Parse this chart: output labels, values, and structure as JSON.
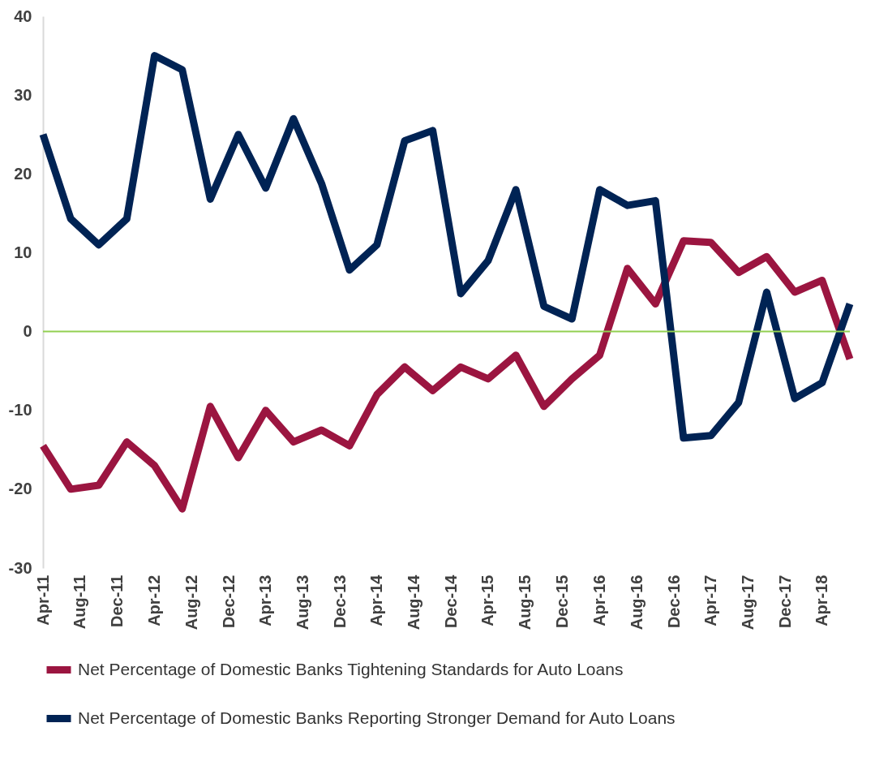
{
  "chart_data": {
    "type": "line",
    "x": [
      "2011-04",
      "2011-07",
      "2011-10",
      "2012-01",
      "2012-04",
      "2012-07",
      "2012-10",
      "2013-01",
      "2013-04",
      "2013-07",
      "2013-10",
      "2014-01",
      "2014-04",
      "2014-07",
      "2014-10",
      "2015-01",
      "2015-04",
      "2015-07",
      "2015-10",
      "2016-01",
      "2016-04",
      "2016-07",
      "2016-10",
      "2017-01",
      "2017-04",
      "2017-07",
      "2017-10",
      "2018-01",
      "2018-04",
      "2018-07"
    ],
    "series": [
      {
        "name": "Net Percentage of Domestic Banks Tightening Standards for Auto Loans",
        "color": "#9b1540",
        "values": [
          -14.5,
          -20,
          -19.5,
          -14,
          -17,
          -22.5,
          -9.5,
          -16,
          -10,
          -14,
          -12.5,
          -14.5,
          -8,
          -4.5,
          -7.5,
          -4.5,
          -6,
          -3,
          -9.5,
          -6,
          -3,
          8,
          3.5,
          11.5,
          11.3,
          7.5,
          9.5,
          5,
          6.5,
          -3.5
        ]
      },
      {
        "name": "Net Percentage of Domestic Banks Reporting Stronger Demand for Auto Loans",
        "color": "#002354",
        "values": [
          25,
          14.3,
          11,
          14.3,
          35,
          33.2,
          16.8,
          25,
          18.2,
          27,
          18.8,
          7.8,
          11,
          24.2,
          25.5,
          4.8,
          9,
          18,
          3.2,
          1.6,
          18,
          16,
          16.6,
          -13.5,
          -13.2,
          -9,
          5,
          -8.5,
          -6.5,
          3.5
        ]
      }
    ],
    "xlim": [
      "2011-04",
      "2018-07"
    ],
    "xticks": [
      {
        "value": "2011-04",
        "label": "Apr-11"
      },
      {
        "value": "2011-08",
        "label": "Aug-11"
      },
      {
        "value": "2011-12",
        "label": "Dec-11"
      },
      {
        "value": "2012-04",
        "label": "Apr-12"
      },
      {
        "value": "2012-08",
        "label": "Aug-12"
      },
      {
        "value": "2012-12",
        "label": "Dec-12"
      },
      {
        "value": "2013-04",
        "label": "Apr-13"
      },
      {
        "value": "2013-08",
        "label": "Aug-13"
      },
      {
        "value": "2013-12",
        "label": "Dec-13"
      },
      {
        "value": "2014-04",
        "label": "Apr-14"
      },
      {
        "value": "2014-08",
        "label": "Aug-14"
      },
      {
        "value": "2014-12",
        "label": "Dec-14"
      },
      {
        "value": "2015-04",
        "label": "Apr-15"
      },
      {
        "value": "2015-08",
        "label": "Aug-15"
      },
      {
        "value": "2015-12",
        "label": "Dec-15"
      },
      {
        "value": "2016-04",
        "label": "Apr-16"
      },
      {
        "value": "2016-08",
        "label": "Aug-16"
      },
      {
        "value": "2016-12",
        "label": "Dec-16"
      },
      {
        "value": "2017-04",
        "label": "Apr-17"
      },
      {
        "value": "2017-08",
        "label": "Aug-17"
      },
      {
        "value": "2017-12",
        "label": "Dec-17"
      },
      {
        "value": "2018-04",
        "label": "Apr-18"
      }
    ],
    "ylim": [
      -30,
      40
    ],
    "yticks": [
      -30,
      -20,
      -10,
      0,
      10,
      20,
      30,
      40
    ],
    "ref_lines": [
      {
        "axis": "y",
        "value": 0,
        "color": "#92d050"
      }
    ],
    "grid": false,
    "legend": "bottom",
    "marker": "none",
    "line_style": "solid"
  }
}
